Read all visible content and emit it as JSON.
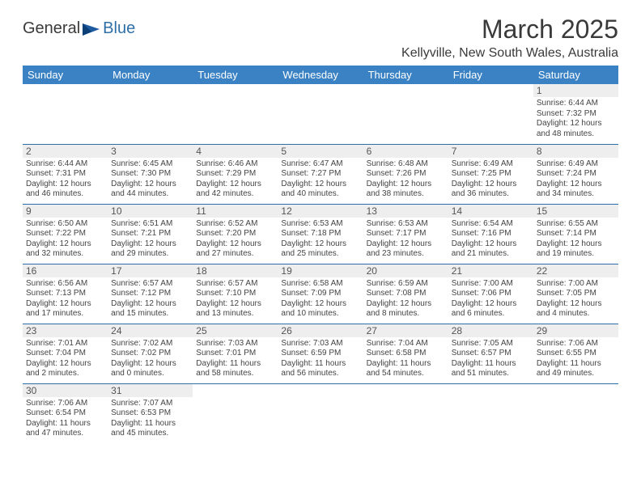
{
  "logo": {
    "text_left": "General",
    "text_right": "Blue",
    "icon_color": "#1e5aa0"
  },
  "title": "March 2025",
  "location": "Kellyville, New South Wales, Australia",
  "colors": {
    "header_bg": "#3b82c4",
    "header_text": "#ffffff",
    "border": "#2f6fa8",
    "daynum_bg": "#eeeeee",
    "body_text": "#444444"
  },
  "weekdays": [
    "Sunday",
    "Monday",
    "Tuesday",
    "Wednesday",
    "Thursday",
    "Friday",
    "Saturday"
  ],
  "weeks": [
    [
      {
        "n": "",
        "lines": []
      },
      {
        "n": "",
        "lines": []
      },
      {
        "n": "",
        "lines": []
      },
      {
        "n": "",
        "lines": []
      },
      {
        "n": "",
        "lines": []
      },
      {
        "n": "",
        "lines": []
      },
      {
        "n": "1",
        "lines": [
          "Sunrise: 6:44 AM",
          "Sunset: 7:32 PM",
          "Daylight: 12 hours",
          "and 48 minutes."
        ]
      }
    ],
    [
      {
        "n": "2",
        "lines": [
          "Sunrise: 6:44 AM",
          "Sunset: 7:31 PM",
          "Daylight: 12 hours",
          "and 46 minutes."
        ]
      },
      {
        "n": "3",
        "lines": [
          "Sunrise: 6:45 AM",
          "Sunset: 7:30 PM",
          "Daylight: 12 hours",
          "and 44 minutes."
        ]
      },
      {
        "n": "4",
        "lines": [
          "Sunrise: 6:46 AM",
          "Sunset: 7:29 PM",
          "Daylight: 12 hours",
          "and 42 minutes."
        ]
      },
      {
        "n": "5",
        "lines": [
          "Sunrise: 6:47 AM",
          "Sunset: 7:27 PM",
          "Daylight: 12 hours",
          "and 40 minutes."
        ]
      },
      {
        "n": "6",
        "lines": [
          "Sunrise: 6:48 AM",
          "Sunset: 7:26 PM",
          "Daylight: 12 hours",
          "and 38 minutes."
        ]
      },
      {
        "n": "7",
        "lines": [
          "Sunrise: 6:49 AM",
          "Sunset: 7:25 PM",
          "Daylight: 12 hours",
          "and 36 minutes."
        ]
      },
      {
        "n": "8",
        "lines": [
          "Sunrise: 6:49 AM",
          "Sunset: 7:24 PM",
          "Daylight: 12 hours",
          "and 34 minutes."
        ]
      }
    ],
    [
      {
        "n": "9",
        "lines": [
          "Sunrise: 6:50 AM",
          "Sunset: 7:22 PM",
          "Daylight: 12 hours",
          "and 32 minutes."
        ]
      },
      {
        "n": "10",
        "lines": [
          "Sunrise: 6:51 AM",
          "Sunset: 7:21 PM",
          "Daylight: 12 hours",
          "and 29 minutes."
        ]
      },
      {
        "n": "11",
        "lines": [
          "Sunrise: 6:52 AM",
          "Sunset: 7:20 PM",
          "Daylight: 12 hours",
          "and 27 minutes."
        ]
      },
      {
        "n": "12",
        "lines": [
          "Sunrise: 6:53 AM",
          "Sunset: 7:18 PM",
          "Daylight: 12 hours",
          "and 25 minutes."
        ]
      },
      {
        "n": "13",
        "lines": [
          "Sunrise: 6:53 AM",
          "Sunset: 7:17 PM",
          "Daylight: 12 hours",
          "and 23 minutes."
        ]
      },
      {
        "n": "14",
        "lines": [
          "Sunrise: 6:54 AM",
          "Sunset: 7:16 PM",
          "Daylight: 12 hours",
          "and 21 minutes."
        ]
      },
      {
        "n": "15",
        "lines": [
          "Sunrise: 6:55 AM",
          "Sunset: 7:14 PM",
          "Daylight: 12 hours",
          "and 19 minutes."
        ]
      }
    ],
    [
      {
        "n": "16",
        "lines": [
          "Sunrise: 6:56 AM",
          "Sunset: 7:13 PM",
          "Daylight: 12 hours",
          "and 17 minutes."
        ]
      },
      {
        "n": "17",
        "lines": [
          "Sunrise: 6:57 AM",
          "Sunset: 7:12 PM",
          "Daylight: 12 hours",
          "and 15 minutes."
        ]
      },
      {
        "n": "18",
        "lines": [
          "Sunrise: 6:57 AM",
          "Sunset: 7:10 PM",
          "Daylight: 12 hours",
          "and 13 minutes."
        ]
      },
      {
        "n": "19",
        "lines": [
          "Sunrise: 6:58 AM",
          "Sunset: 7:09 PM",
          "Daylight: 12 hours",
          "and 10 minutes."
        ]
      },
      {
        "n": "20",
        "lines": [
          "Sunrise: 6:59 AM",
          "Sunset: 7:08 PM",
          "Daylight: 12 hours",
          "and 8 minutes."
        ]
      },
      {
        "n": "21",
        "lines": [
          "Sunrise: 7:00 AM",
          "Sunset: 7:06 PM",
          "Daylight: 12 hours",
          "and 6 minutes."
        ]
      },
      {
        "n": "22",
        "lines": [
          "Sunrise: 7:00 AM",
          "Sunset: 7:05 PM",
          "Daylight: 12 hours",
          "and 4 minutes."
        ]
      }
    ],
    [
      {
        "n": "23",
        "lines": [
          "Sunrise: 7:01 AM",
          "Sunset: 7:04 PM",
          "Daylight: 12 hours",
          "and 2 minutes."
        ]
      },
      {
        "n": "24",
        "lines": [
          "Sunrise: 7:02 AM",
          "Sunset: 7:02 PM",
          "Daylight: 12 hours",
          "and 0 minutes."
        ]
      },
      {
        "n": "25",
        "lines": [
          "Sunrise: 7:03 AM",
          "Sunset: 7:01 PM",
          "Daylight: 11 hours",
          "and 58 minutes."
        ]
      },
      {
        "n": "26",
        "lines": [
          "Sunrise: 7:03 AM",
          "Sunset: 6:59 PM",
          "Daylight: 11 hours",
          "and 56 minutes."
        ]
      },
      {
        "n": "27",
        "lines": [
          "Sunrise: 7:04 AM",
          "Sunset: 6:58 PM",
          "Daylight: 11 hours",
          "and 54 minutes."
        ]
      },
      {
        "n": "28",
        "lines": [
          "Sunrise: 7:05 AM",
          "Sunset: 6:57 PM",
          "Daylight: 11 hours",
          "and 51 minutes."
        ]
      },
      {
        "n": "29",
        "lines": [
          "Sunrise: 7:06 AM",
          "Sunset: 6:55 PM",
          "Daylight: 11 hours",
          "and 49 minutes."
        ]
      }
    ],
    [
      {
        "n": "30",
        "lines": [
          "Sunrise: 7:06 AM",
          "Sunset: 6:54 PM",
          "Daylight: 11 hours",
          "and 47 minutes."
        ]
      },
      {
        "n": "31",
        "lines": [
          "Sunrise: 7:07 AM",
          "Sunset: 6:53 PM",
          "Daylight: 11 hours",
          "and 45 minutes."
        ]
      },
      {
        "n": "",
        "lines": []
      },
      {
        "n": "",
        "lines": []
      },
      {
        "n": "",
        "lines": []
      },
      {
        "n": "",
        "lines": []
      },
      {
        "n": "",
        "lines": []
      }
    ]
  ]
}
